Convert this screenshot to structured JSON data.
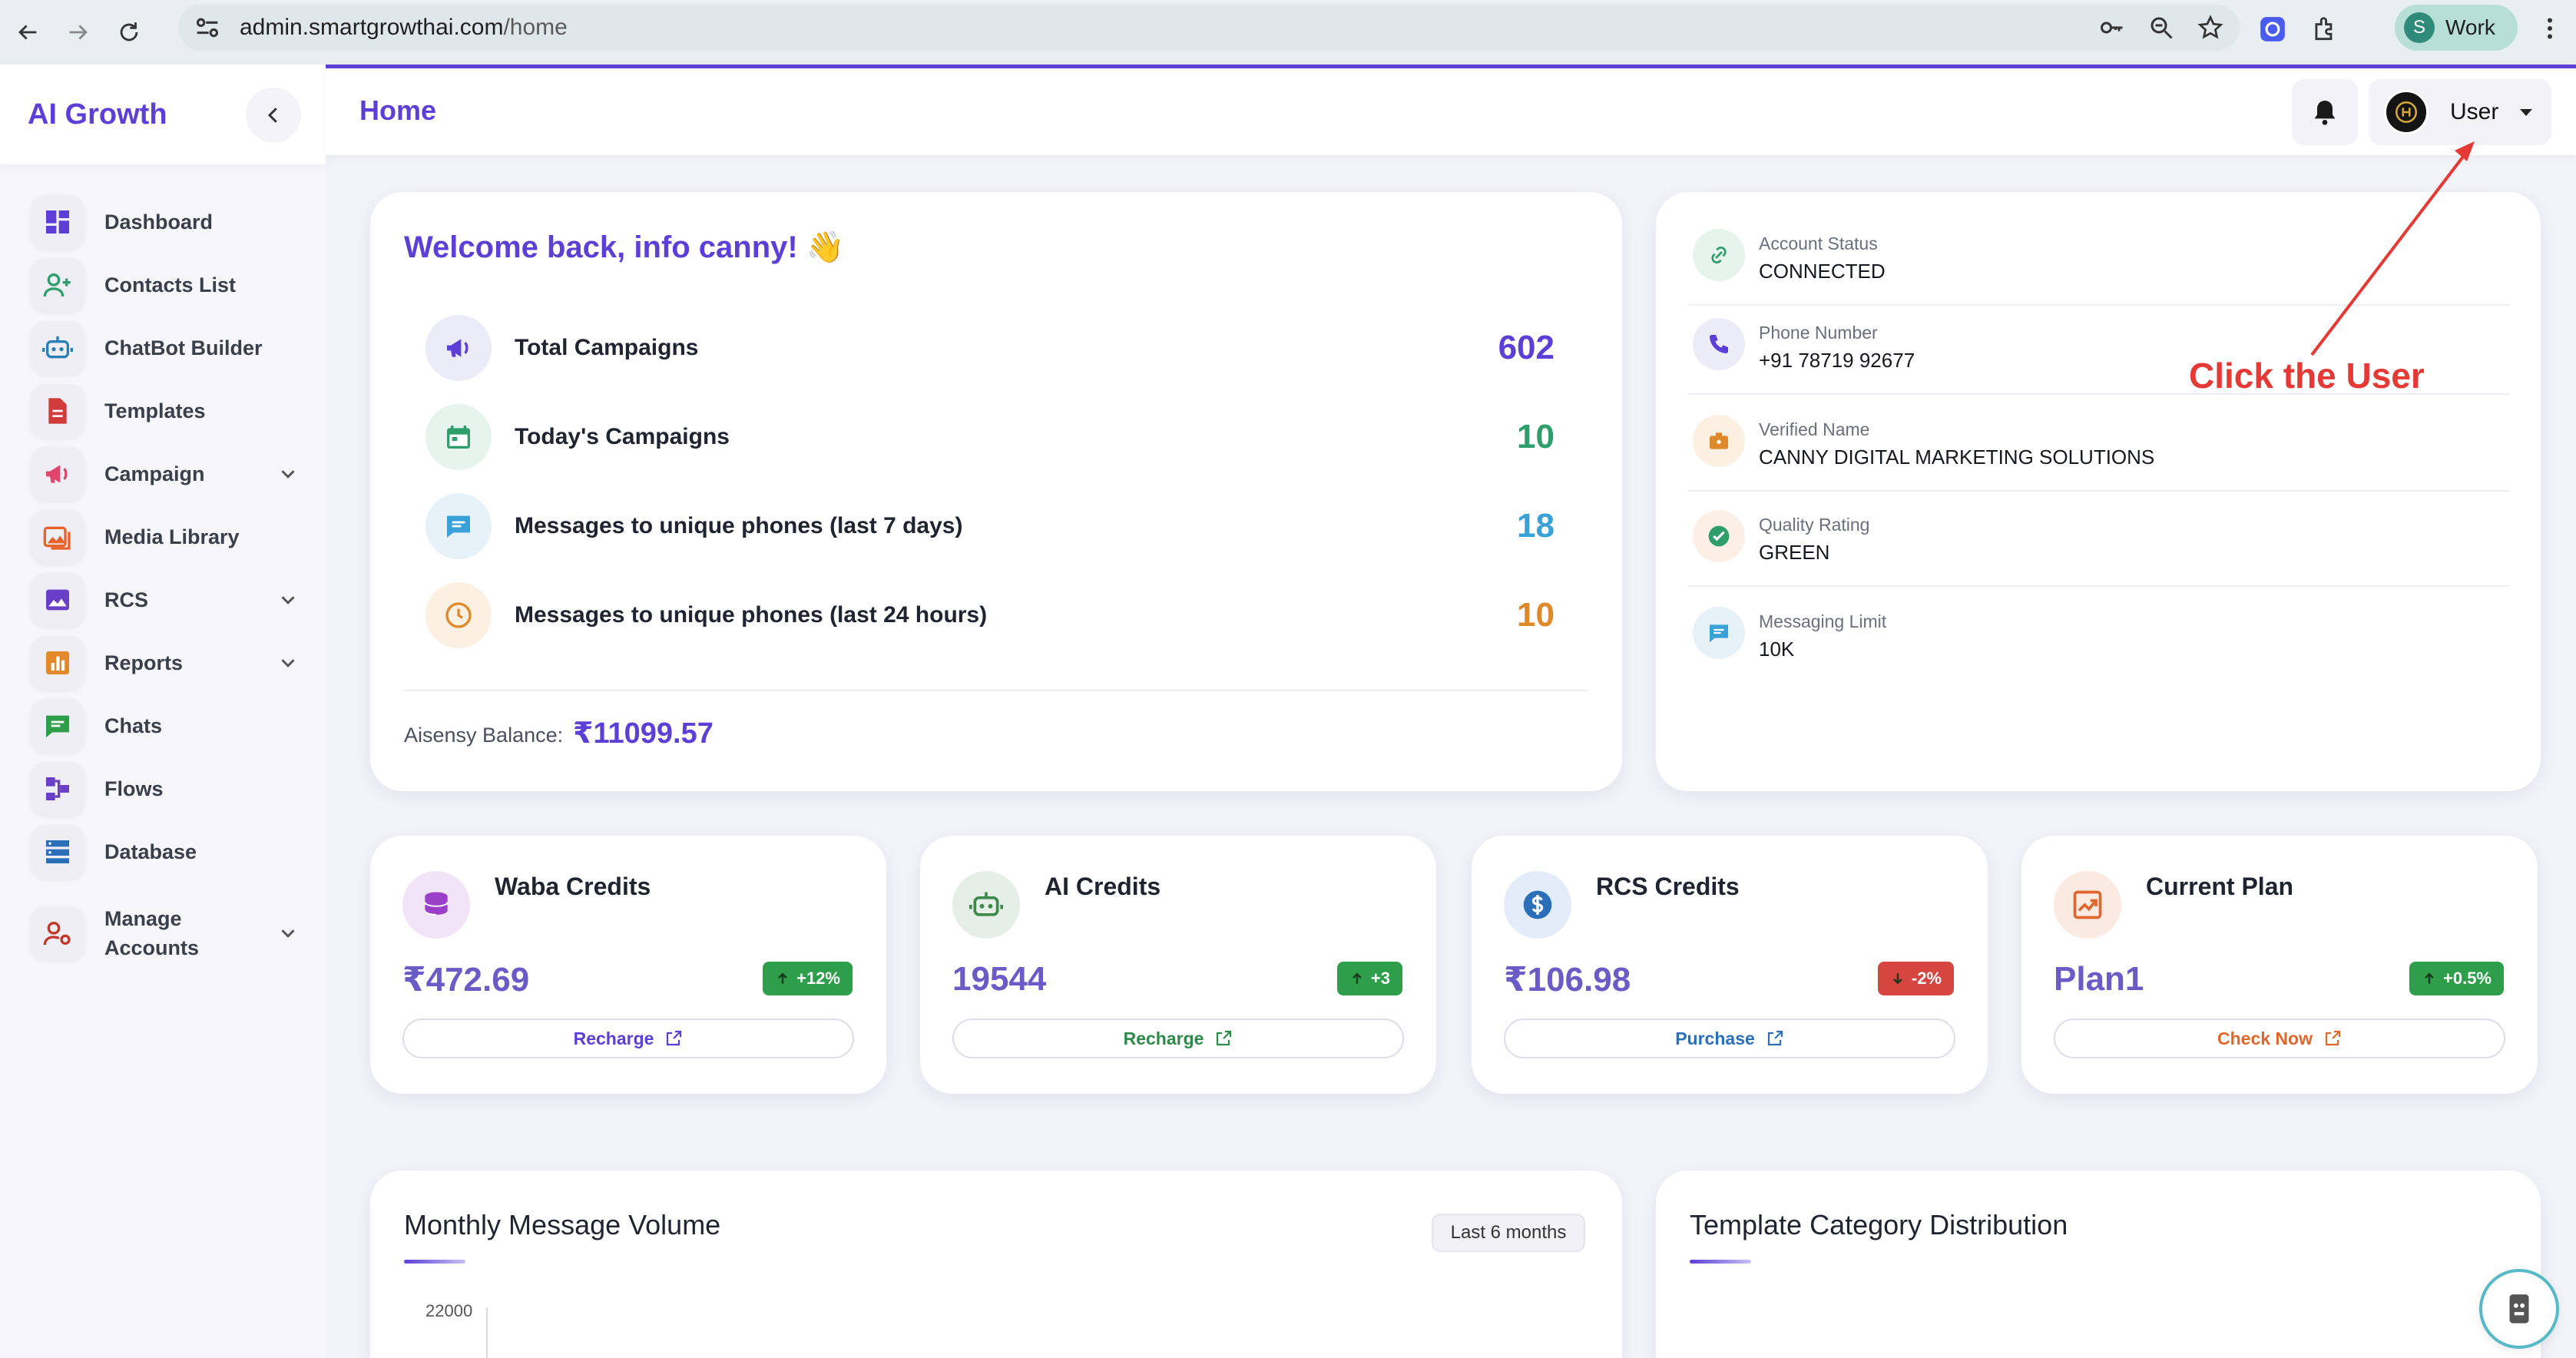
{
  "browser": {
    "url_host": "admin.smartgrowthai.com",
    "url_path": "/home",
    "profile_initial": "S",
    "profile_label": "Work"
  },
  "sidebar": {
    "brand": "AI Growth",
    "items": [
      {
        "label": "Dashboard",
        "icon": "dashboard-icon",
        "color": "#5b3fd6"
      },
      {
        "label": "Contacts List",
        "icon": "add-contact-icon",
        "color": "#2e9e6a"
      },
      {
        "label": "ChatBot Builder",
        "icon": "robot-icon",
        "color": "#2b7fb8"
      },
      {
        "label": "Templates",
        "icon": "document-icon",
        "color": "#d23b3b"
      },
      {
        "label": "Campaign",
        "icon": "megaphone-icon",
        "color": "#e0466b"
      },
      {
        "label": "Media Library",
        "icon": "images-icon",
        "color": "#e8632b"
      },
      {
        "label": "RCS",
        "icon": "image-icon",
        "color": "#6a3fc8"
      },
      {
        "label": "Reports",
        "icon": "bar-chart-icon",
        "color": "#e3882b"
      },
      {
        "label": "Chats",
        "icon": "chat-icon",
        "color": "#2e9e4a"
      },
      {
        "label": "Flows",
        "icon": "flow-icon",
        "color": "#6a3fc8"
      },
      {
        "label": "Database",
        "icon": "database-icon",
        "color": "#2b6fb8"
      },
      {
        "label": "Manage Accounts",
        "icon": "manage-users-icon",
        "color": "#c0392b"
      }
    ]
  },
  "header": {
    "title": "Home",
    "user_label": "User"
  },
  "welcome": {
    "title": "Welcome back, info canny! 👋",
    "stats": [
      {
        "label": "Total Campaigns",
        "value": "602",
        "color": "#5b3fd6",
        "bg": "#ecebf8",
        "icon": "megaphone-icon"
      },
      {
        "label": "Today's Campaigns",
        "value": "10",
        "color": "#2e9e6a",
        "bg": "#e7f4ee",
        "icon": "calendar-icon"
      },
      {
        "label": "Messages to unique phones (last 7 days)",
        "value": "18",
        "color": "#3aa0d8",
        "bg": "#e6f2f8",
        "icon": "chat-icon"
      },
      {
        "label": "Messages to unique phones (last 24 hours)",
        "value": "10",
        "color": "#e0892b",
        "bg": "#fbf0e2",
        "icon": "clock-icon"
      }
    ],
    "balance_label": "Aisensy Balance:",
    "balance_value": "₹11099.57"
  },
  "account": {
    "rows": [
      {
        "label": "Account Status",
        "value": "CONNECTED",
        "icon": "link-icon",
        "color": "#2e9e6a",
        "bg": "#e7f4ee"
      },
      {
        "label": "Phone Number",
        "value": "+91 78719 92677",
        "icon": "phone-icon",
        "color": "#5b3fd6",
        "bg": "#ecebf8"
      },
      {
        "label": "Verified Name",
        "value": "CANNY DIGITAL MARKETING SOLUTIONS",
        "icon": "badge-icon",
        "color": "#e0892b",
        "bg": "#fbf0e2"
      },
      {
        "label": "Quality Rating",
        "value": "GREEN",
        "icon": "check-circle-icon",
        "color": "#2e9e6a",
        "bg": "#fbefe6"
      },
      {
        "label": "Messaging Limit",
        "value": "10K",
        "icon": "message-icon",
        "color": "#3aa0d8",
        "bg": "#e6f2f8"
      }
    ]
  },
  "credits": [
    {
      "title": "Waba Credits",
      "value": "₹472.69",
      "badge": "+12%",
      "badge_color": "#2e9e4a",
      "button": "Recharge",
      "btn_color": "#5b3fd6",
      "val_color": "#6b5bc7",
      "icon": "coins-icon",
      "icon_color": "#9c3fc8",
      "icon_bg": "#f1e4f7"
    },
    {
      "title": "AI Credits",
      "value": "19544",
      "badge": "+3",
      "badge_color": "#2e9e4a",
      "button": "Recharge",
      "btn_color": "#2e8a4a",
      "val_color": "#6b5bc7",
      "icon": "robot-icon",
      "icon_color": "#3f8a4a",
      "icon_bg": "#e6efe7"
    },
    {
      "title": "RCS Credits",
      "value": "₹106.98",
      "badge": "-2%",
      "badge_color": "#d64540",
      "button": "Purchase",
      "btn_color": "#2b6fb8",
      "val_color": "#6b5bc7",
      "icon": "dollar-icon",
      "icon_color": "#2b6fb8",
      "icon_bg": "#e3ecf8"
    },
    {
      "title": "Current Plan",
      "value": "Plan1",
      "badge": "+0.5%",
      "badge_color": "#2e9e4a",
      "button": "Check Now",
      "btn_color": "#e0662b",
      "val_color": "#6b5bc7",
      "icon": "trend-icon",
      "icon_color": "#e0662b",
      "icon_bg": "#fbeae2"
    }
  ],
  "monthly": {
    "title": "Monthly Message Volume",
    "range": "Last 6 months",
    "y_tick": "22000"
  },
  "template_dist": {
    "title": "Template Category Distribution"
  },
  "annotation": {
    "text": "Click the User"
  }
}
